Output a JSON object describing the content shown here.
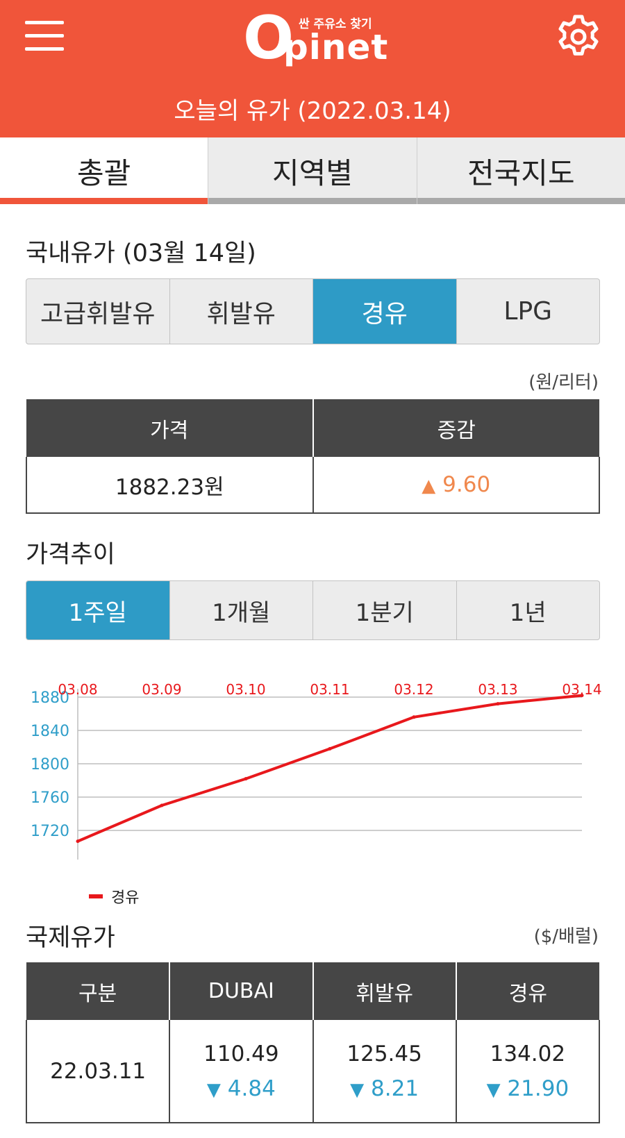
{
  "header": {
    "logo_tagline": "싼 주유소 찾기",
    "logo_letter": "O",
    "logo_text": "pinet",
    "date_title": "오늘의 유가 (2022.03.14)",
    "bg_color": "#f0553a"
  },
  "main_tabs": [
    {
      "label": "총괄",
      "active": true
    },
    {
      "label": "지역별",
      "active": false
    },
    {
      "label": "전국지도",
      "active": false
    }
  ],
  "domestic": {
    "title": "국내유가 (03월 14일)",
    "fuel_tabs": [
      {
        "label": "고급휘발유",
        "active": false
      },
      {
        "label": "휘발유",
        "active": false
      },
      {
        "label": "경유",
        "active": true
      },
      {
        "label": "LPG",
        "active": false
      }
    ],
    "unit": "(원/리터)",
    "table": {
      "headers": [
        "가격",
        "증감"
      ],
      "price": "1882.23원",
      "change_symbol": "▲",
      "change_value": "9.60"
    }
  },
  "trend": {
    "title": "가격추이",
    "period_tabs": [
      {
        "label": "1주일",
        "active": true
      },
      {
        "label": "1개월",
        "active": false
      },
      {
        "label": "1분기",
        "active": false
      },
      {
        "label": "1년",
        "active": false
      }
    ]
  },
  "chart_data": {
    "type": "line",
    "categories": [
      "03.08",
      "03.09",
      "03.10",
      "03.11",
      "03.12",
      "03.13",
      "03.14"
    ],
    "series": [
      {
        "name": "경유",
        "values": [
          1707,
          1750,
          1782,
          1818,
          1856,
          1872,
          1882
        ],
        "color": "#e8181c"
      }
    ],
    "y_ticks": [
      1720,
      1760,
      1800,
      1840,
      1880
    ],
    "ylim": [
      1690,
      1890
    ],
    "grid": true,
    "legend": "bottom-left",
    "x_tick_color": "#e8181c",
    "y_tick_color": "#2f9ec9"
  },
  "international": {
    "title": "국제유가",
    "unit": "($/배럴)",
    "headers": [
      "구분",
      "DUBAI",
      "휘발유",
      "경유"
    ],
    "date": "22.03.11",
    "cells": [
      {
        "value": "110.49",
        "symbol": "▼",
        "change": "4.84"
      },
      {
        "value": "125.45",
        "symbol": "▼",
        "change": "8.21"
      },
      {
        "value": "134.02",
        "symbol": "▼",
        "change": "21.90"
      }
    ]
  }
}
